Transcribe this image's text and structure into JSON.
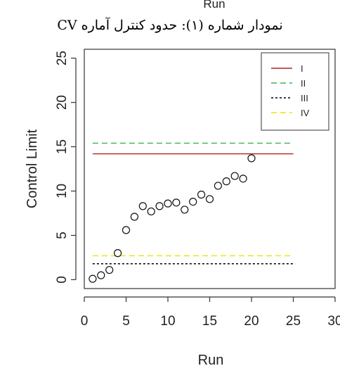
{
  "page": {
    "top_cut_label": "Run",
    "caption": "نمودار شماره (۱): حدود کنترل آماره CV"
  },
  "chart_data": {
    "type": "scatter",
    "title": "",
    "xlabel": "Run",
    "ylabel": "Control Limit",
    "xlim": [
      0,
      30
    ],
    "ylim": [
      -1,
      26
    ],
    "x_ticks": [
      "0",
      "5",
      "10",
      "15",
      "20",
      "25",
      "30"
    ],
    "y_ticks": [
      "0",
      "5",
      "10",
      "15",
      "20",
      "25"
    ],
    "grid": false,
    "legend_position": "top-right",
    "points": [
      {
        "x": 1,
        "y": 0.1
      },
      {
        "x": 2,
        "y": 0.5
      },
      {
        "x": 3,
        "y": 1.1
      },
      {
        "x": 4,
        "y": 3.0
      },
      {
        "x": 5,
        "y": 5.6
      },
      {
        "x": 6,
        "y": 7.1
      },
      {
        "x": 7,
        "y": 8.3
      },
      {
        "x": 8,
        "y": 7.7
      },
      {
        "x": 9,
        "y": 8.3
      },
      {
        "x": 10,
        "y": 8.6
      },
      {
        "x": 11,
        "y": 8.7
      },
      {
        "x": 12,
        "y": 7.9
      },
      {
        "x": 13,
        "y": 8.8
      },
      {
        "x": 14,
        "y": 9.6
      },
      {
        "x": 15,
        "y": 9.1
      },
      {
        "x": 16,
        "y": 10.6
      },
      {
        "x": 17,
        "y": 11.1
      },
      {
        "x": 18,
        "y": 11.7
      },
      {
        "x": 19,
        "y": 11.4
      },
      {
        "x": 20,
        "y": 13.7
      }
    ],
    "series": [
      {
        "name": "I",
        "color": "#b22222",
        "dash": "solid",
        "y": 14.2,
        "x_range": [
          1,
          25
        ]
      },
      {
        "name": "II",
        "color": "#3cb44b",
        "dash": "dashed",
        "y": 15.4,
        "x_range": [
          1,
          25
        ]
      },
      {
        "name": "III",
        "color": "#000000",
        "dash": "dotted",
        "y": 1.8,
        "x_range": [
          1,
          25
        ]
      },
      {
        "name": "IV",
        "color": "#e6e600",
        "dash": "dashed",
        "y": 2.7,
        "x_range": [
          1,
          25
        ]
      }
    ]
  }
}
